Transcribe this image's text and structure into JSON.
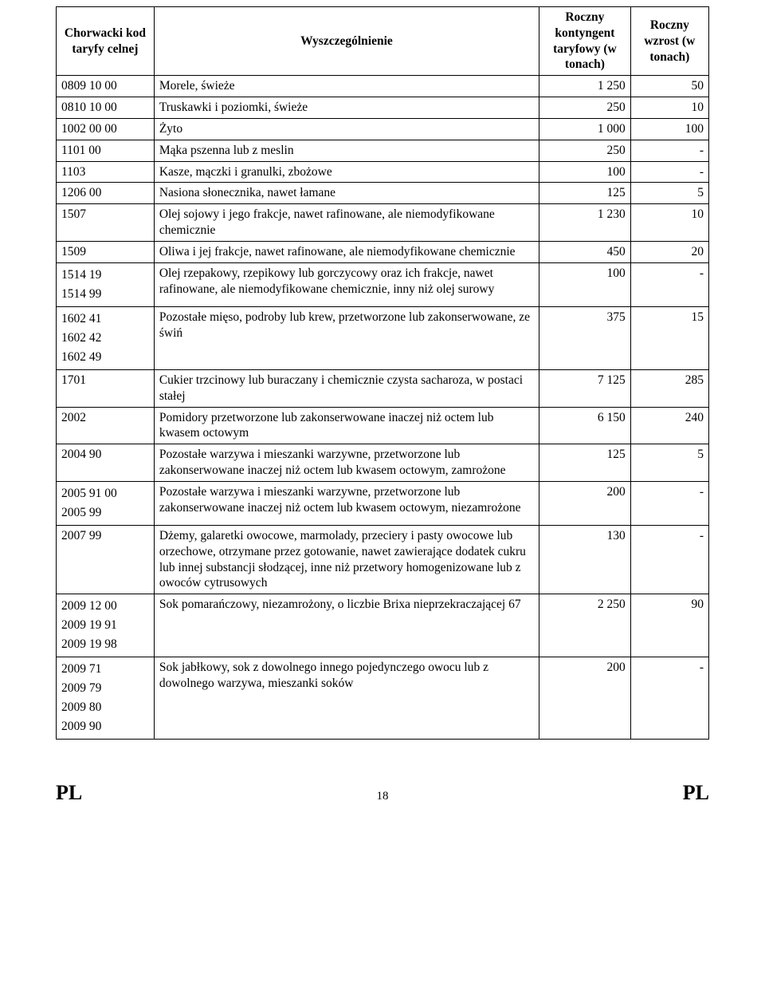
{
  "header": {
    "col1": "Chorwacki kod taryfy celnej",
    "col2": "Wyszczególnienie",
    "col3": "Roczny kontyngent taryfowy (w tonach)",
    "col4": "Roczny wzrost (w tonach)"
  },
  "rows": [
    {
      "code": "0809 10 00",
      "desc": "Morele, świeże",
      "v1": "1 250",
      "v2": "50"
    },
    {
      "code": "0810 10 00",
      "desc": "Truskawki i poziomki, świeże",
      "v1": "250",
      "v2": "10"
    },
    {
      "code": "1002 00 00",
      "desc": "Żyto",
      "v1": "1 000",
      "v2": "100"
    },
    {
      "code": "1101 00",
      "desc": "Mąka pszenna lub z meslin",
      "v1": "250",
      "v2": "-"
    },
    {
      "code": "1103",
      "desc": "Kasze, mączki i granulki, zbożowe",
      "v1": "100",
      "v2": "-"
    },
    {
      "code": "1206 00",
      "desc": "Nasiona słonecznika, nawet łamane",
      "v1": "125",
      "v2": "5"
    },
    {
      "code": "1507",
      "desc": "Olej sojowy i jego frakcje, nawet rafinowane, ale niemodyfikowane chemicznie",
      "v1": "1 230",
      "v2": "10"
    },
    {
      "code": "1509",
      "desc": "Oliwa i jej frakcje, nawet rafinowane, ale niemodyfikowane chemicznie",
      "v1": "450",
      "v2": "20"
    },
    {
      "code": "1514 19\n1514 99",
      "desc": "Olej rzepakowy, rzepikowy lub gorczycowy oraz ich frakcje, nawet rafinowane, ale niemodyfikowane chemicznie, inny niż olej surowy",
      "v1": "100",
      "v2": "-"
    },
    {
      "code": "1602 41\n1602 42\n1602 49",
      "desc": "Pozostałe mięso, podroby lub krew, przetworzone lub zakonserwowane, ze świń",
      "v1": "375",
      "v2": "15"
    },
    {
      "code": "1701",
      "desc": "Cukier trzcinowy lub buraczany i chemicznie czysta sacharoza, w postaci stałej",
      "v1": "7 125",
      "v2": "285"
    },
    {
      "code": "2002",
      "desc": "Pomidory przetworzone lub zakonserwowane inaczej niż octem lub kwasem octowym",
      "v1": "6 150",
      "v2": "240"
    },
    {
      "code": "2004 90",
      "desc": "Pozostałe warzywa i mieszanki warzywne, przetworzone lub zakonserwowane inaczej niż octem lub kwasem octowym, zamrożone",
      "v1": "125",
      "v2": "5"
    },
    {
      "code": "2005 91 00\n2005 99",
      "desc": "Pozostałe warzywa i mieszanki warzywne, przetworzone lub zakonserwowane inaczej niż octem lub kwasem octowym, niezamrożone",
      "v1": "200",
      "v2": "-"
    },
    {
      "code": "2007 99",
      "desc": "Dżemy, galaretki owocowe, marmolady, przeciery i pasty owocowe lub orzechowe, otrzymane przez gotowanie, nawet zawierające dodatek cukru lub innej substancji słodzącej, inne niż przetwory homogenizowane lub z owoców cytrusowych",
      "v1": "130",
      "v2": "-"
    },
    {
      "code": "2009 12 00\n2009 19 91\n2009 19 98",
      "desc": "Sok pomarańczowy, niezamrożony, o liczbie Brixa nieprzekraczającej 67",
      "v1": "2 250",
      "v2": "90"
    },
    {
      "code": "2009 71\n2009 79\n2009 80\n2009 90",
      "desc": "Sok jabłkowy, sok z dowolnego innego pojedynczego owocu lub z dowolnego warzywa, mieszanki soków",
      "v1": "200",
      "v2": "-"
    }
  ],
  "footer": {
    "left": "PL",
    "page": "18",
    "right": "PL"
  }
}
